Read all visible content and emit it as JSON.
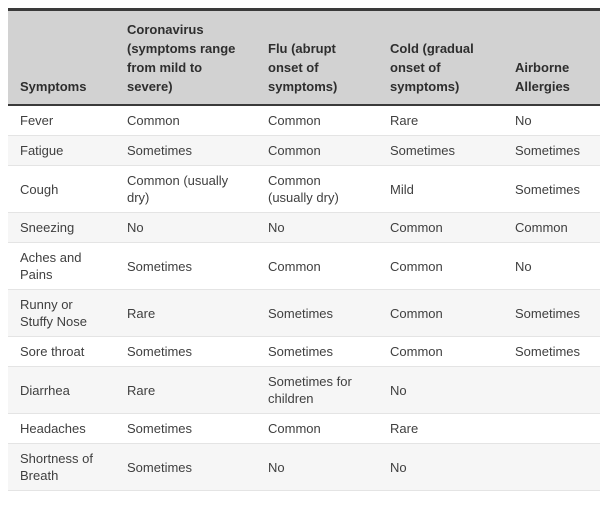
{
  "table": {
    "columns": [
      {
        "label": "Symptoms"
      },
      {
        "label": "Coronavirus (symptoms range from mild to severe)"
      },
      {
        "label": "Flu (abrupt onset of symptoms)"
      },
      {
        "label": "Cold (gradual onset of symptoms)"
      },
      {
        "label": "Airborne Allergies"
      }
    ],
    "rows": [
      {
        "label": "Fever",
        "cells": [
          "Common",
          "Common",
          "Rare",
          "No"
        ]
      },
      {
        "label": "Fatigue",
        "cells": [
          "Sometimes",
          "Common",
          "Sometimes",
          "Sometimes"
        ]
      },
      {
        "label": "Cough",
        "cells": [
          "Common (usually dry)",
          "Common (usually dry)",
          "Mild",
          "Sometimes"
        ]
      },
      {
        "label": "Sneezing",
        "cells": [
          "No",
          "No",
          "Common",
          "Common"
        ]
      },
      {
        "label": "Aches and Pains",
        "cells": [
          "Sometimes",
          "Common",
          "Common",
          "No"
        ]
      },
      {
        "label": "Runny or Stuffy Nose",
        "cells": [
          "Rare",
          "Sometimes",
          "Common",
          "Sometimes"
        ]
      },
      {
        "label": "Sore throat",
        "cells": [
          "Sometimes",
          "Sometimes",
          "Common",
          "Sometimes"
        ]
      },
      {
        "label": "Diarrhea",
        "cells": [
          "Rare",
          "Sometimes for children",
          "No",
          ""
        ]
      },
      {
        "label": "Headaches",
        "cells": [
          "Sometimes",
          "Common",
          "Rare",
          ""
        ]
      },
      {
        "label": "Shortness of Breath",
        "cells": [
          "Sometimes",
          "No",
          "No",
          ""
        ]
      }
    ]
  },
  "colors": {
    "header_background": "#d2d2d2",
    "dark_border": "#3a3a3a",
    "row_divider": "#e4e4e4",
    "zebra_stripe": "#f6f6f6",
    "header_text": "#2e2e2e",
    "body_text": "#3f3f3f",
    "page_background": "#ffffff"
  }
}
